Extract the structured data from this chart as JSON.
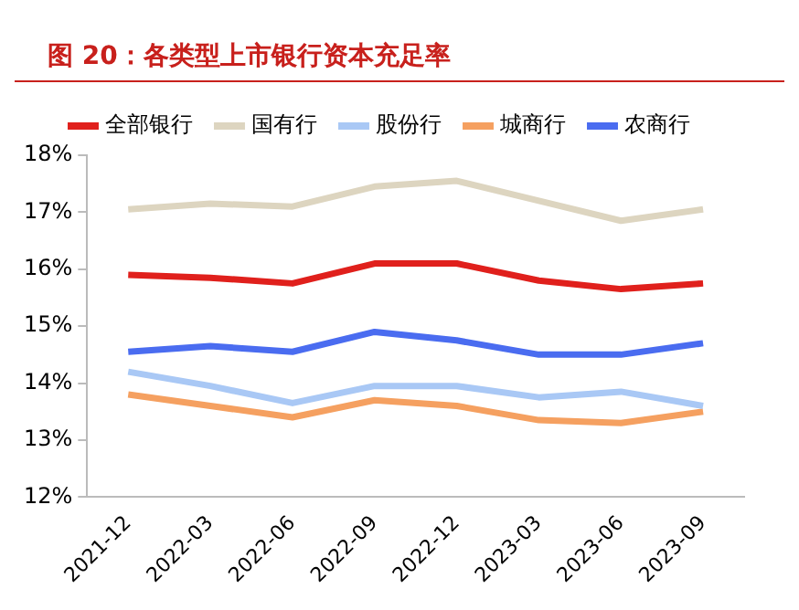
{
  "chart_data": {
    "type": "line",
    "title": "图 20：各类型上市银行资本充足率",
    "categories": [
      "2021-12",
      "2022-03",
      "2022-06",
      "2022-09",
      "2022-12",
      "2023-03",
      "2023-06",
      "2023-09"
    ],
    "series": [
      {
        "name": "全部银行",
        "color": "#e0201c",
        "values": [
          15.9,
          15.85,
          15.75,
          16.1,
          16.1,
          15.8,
          15.65,
          15.75
        ]
      },
      {
        "name": "国有行",
        "color": "#ddd5c0",
        "values": [
          17.05,
          17.15,
          17.1,
          17.45,
          17.55,
          17.2,
          16.85,
          17.05
        ]
      },
      {
        "name": "股份行",
        "color": "#a9c8f5",
        "values": [
          14.2,
          13.95,
          13.65,
          13.95,
          13.95,
          13.75,
          13.85,
          13.6
        ]
      },
      {
        "name": "城商行",
        "color": "#f5a060",
        "values": [
          13.8,
          13.6,
          13.4,
          13.7,
          13.6,
          13.35,
          13.3,
          13.5
        ]
      },
      {
        "name": "农商行",
        "color": "#4a6cf0",
        "values": [
          14.55,
          14.65,
          14.55,
          14.9,
          14.75,
          14.5,
          14.5,
          14.7
        ]
      }
    ],
    "ylim": [
      12,
      18
    ],
    "yticks": [
      {
        "value": 12,
        "label": "12%"
      },
      {
        "value": 13,
        "label": "13%"
      },
      {
        "value": 14,
        "label": "14%"
      },
      {
        "value": 15,
        "label": "15%"
      },
      {
        "value": 16,
        "label": "16%"
      },
      {
        "value": 17,
        "label": "17%"
      },
      {
        "value": 18,
        "label": "18%"
      }
    ],
    "grid": false,
    "legend": "top",
    "marker": "none",
    "line_style": "solid"
  }
}
